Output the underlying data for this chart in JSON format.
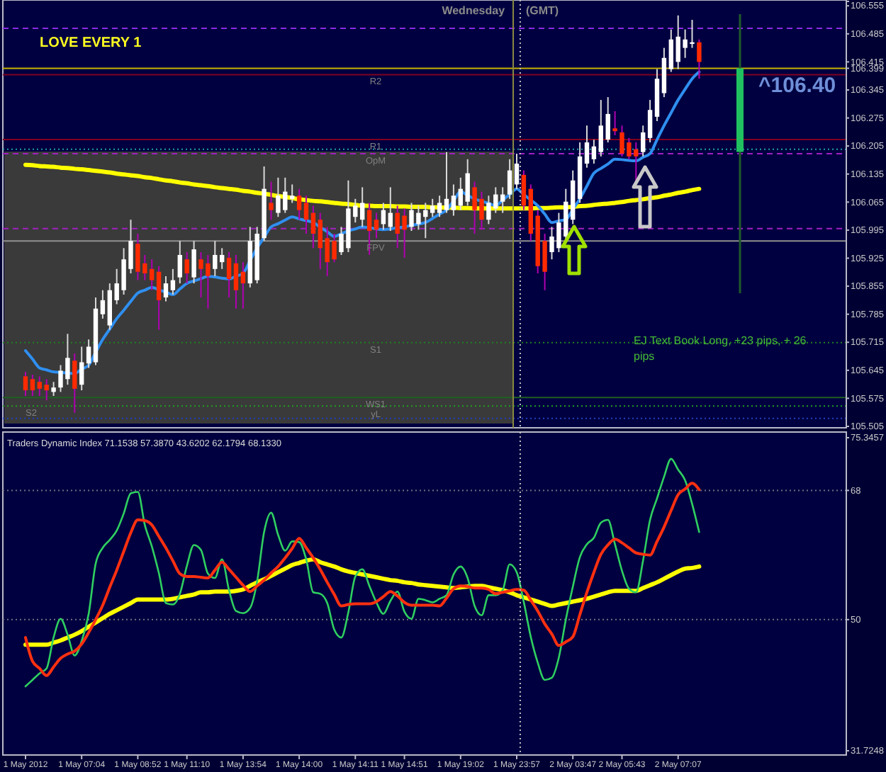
{
  "chart_data": [
    {
      "type": "candlestick",
      "title": "LOVE EVERY 1",
      "tick_labels": "y",
      "categories": [
        null,
        null,
        null,
        null,
        null,
        null,
        null,
        null,
        null,
        null,
        null,
        null,
        null,
        null,
        null,
        null,
        null,
        null,
        null,
        null,
        null,
        null,
        null,
        null,
        null,
        null,
        null,
        null,
        null,
        null,
        null,
        null,
        null,
        null,
        null,
        null,
        null,
        null,
        null,
        null,
        null,
        null,
        null,
        null,
        null,
        null,
        null,
        null,
        null,
        null,
        null,
        null,
        null,
        null,
        null,
        null,
        null,
        null,
        null,
        null,
        null,
        null,
        null,
        null,
        null,
        null,
        null,
        null,
        null,
        null,
        null,
        null,
        null,
        null,
        null,
        null,
        null,
        null,
        null,
        null,
        null,
        null,
        null,
        null,
        null,
        null,
        null,
        null,
        null,
        null,
        null,
        null,
        null,
        null,
        null,
        null,
        null
      ],
      "ylim": [
        105.505,
        106.566
      ],
      "yticks": [
        106.555,
        106.485,
        106.415,
        106.399,
        106.345,
        106.275,
        106.205,
        106.135,
        106.065,
        105.995,
        105.925,
        105.855,
        105.785,
        105.715,
        105.645,
        105.575,
        105.505
      ],
      "ohlc": [
        [
          105.63,
          105.641,
          105.581,
          105.595
        ],
        [
          105.623,
          105.634,
          105.581,
          105.595
        ],
        [
          105.616,
          105.63,
          105.581,
          105.599
        ],
        [
          105.609,
          105.623,
          105.57,
          105.595
        ],
        [
          105.591,
          105.616,
          105.581,
          105.602
        ],
        [
          105.602,
          105.658,
          105.591,
          105.644
        ],
        [
          105.623,
          105.736,
          105.609,
          105.676
        ],
        [
          105.669,
          105.687,
          105.539,
          105.599
        ],
        [
          105.609,
          105.704,
          105.595,
          105.665
        ],
        [
          105.662,
          105.722,
          105.651,
          105.704
        ],
        [
          105.665,
          105.827,
          105.658,
          105.799
        ],
        [
          105.785,
          105.845,
          105.774,
          105.82
        ],
        [
          105.757,
          105.862,
          105.746,
          105.845
        ],
        [
          105.82,
          105.898,
          105.81,
          105.862
        ],
        [
          105.845,
          105.95,
          105.834,
          105.922
        ],
        [
          105.898,
          106.021,
          105.887,
          105.968
        ],
        [
          105.961,
          105.986,
          105.87,
          105.891
        ],
        [
          105.912,
          105.933,
          105.87,
          105.887
        ],
        [
          105.898,
          105.922,
          105.845,
          105.87
        ],
        [
          105.891,
          105.905,
          105.746,
          105.82
        ],
        [
          105.827,
          105.88,
          105.817,
          105.862
        ],
        [
          105.845,
          105.898,
          105.834,
          105.87
        ],
        [
          105.877,
          105.968,
          105.862,
          105.933
        ],
        [
          105.922,
          105.94,
          105.862,
          105.887
        ],
        [
          105.877,
          105.968,
          105.862,
          105.947
        ],
        [
          105.922,
          105.94,
          105.827,
          105.898
        ],
        [
          105.912,
          105.933,
          105.799,
          105.88
        ],
        [
          105.898,
          105.968,
          105.88,
          105.933
        ],
        [
          105.915,
          105.95,
          105.898,
          105.933
        ],
        [
          105.926,
          105.94,
          105.827,
          105.873
        ],
        [
          105.912,
          105.933,
          105.799,
          105.845
        ],
        [
          105.891,
          105.915,
          105.799,
          105.862
        ],
        [
          105.862,
          106.003,
          105.852,
          105.968
        ],
        [
          105.87,
          106.003,
          105.862,
          105.986
        ],
        [
          105.975,
          106.154,
          105.968,
          106.098
        ],
        [
          106.063,
          106.116,
          106.021,
          106.045
        ],
        [
          106.038,
          106.126,
          106.028,
          106.081
        ],
        [
          106.045,
          106.126,
          106.038,
          106.091
        ],
        [
          106.073,
          106.109,
          106.063,
          106.081
        ],
        [
          106.081,
          106.098,
          106.021,
          106.045
        ],
        [
          106.063,
          106.081,
          105.986,
          106.021
        ],
        [
          106.038,
          106.056,
          105.95,
          105.986
        ],
        [
          106.021,
          106.038,
          105.898,
          105.95
        ],
        [
          105.975,
          106.003,
          105.88,
          105.915
        ],
        [
          105.968,
          105.986,
          105.915,
          105.922
        ],
        [
          105.94,
          106.003,
          105.933,
          105.986
        ],
        [
          105.95,
          106.119,
          105.94,
          106.049
        ],
        [
          106.028,
          106.073,
          106.014,
          106.056
        ],
        [
          106.021,
          106.102,
          106.003,
          106.063
        ],
        [
          106.045,
          106.063,
          105.933,
          105.993
        ],
        [
          106.021,
          106.038,
          105.975,
          105.996
        ],
        [
          106.01,
          106.063,
          105.996,
          106.045
        ],
        [
          106.003,
          106.102,
          105.993,
          106.038
        ],
        [
          106.038,
          106.056,
          105.95,
          105.986
        ],
        [
          106.031,
          106.049,
          105.926,
          105.996
        ],
        [
          106.003,
          106.063,
          105.993,
          106.045
        ],
        [
          106.01,
          106.056,
          105.996,
          106.038
        ],
        [
          106.028,
          106.063,
          105.975,
          106.045
        ],
        [
          106.038,
          106.073,
          106.028,
          106.056
        ],
        [
          106.038,
          106.081,
          106.028,
          106.063
        ],
        [
          106.045,
          106.19,
          106.038,
          106.073
        ],
        [
          106.045,
          106.109,
          106.031,
          106.081
        ],
        [
          106.056,
          106.126,
          106.045,
          106.098
        ],
        [
          106.066,
          106.172,
          106.056,
          106.137
        ],
        [
          106.102,
          106.116,
          105.986,
          106.045
        ],
        [
          106.073,
          106.091,
          105.996,
          106.021
        ],
        [
          106.021,
          106.081,
          106.01,
          106.063
        ],
        [
          106.049,
          106.102,
          106.038,
          106.084
        ],
        [
          106.066,
          106.102,
          106.038,
          106.084
        ],
        [
          106.084,
          106.172,
          106.073,
          106.144
        ],
        [
          106.109,
          106.186,
          106.098,
          106.161
        ],
        [
          106.133,
          106.144,
          106.045,
          106.056
        ],
        [
          106.098,
          106.109,
          105.968,
          105.986
        ],
        [
          106.031,
          106.045,
          105.887,
          105.905
        ],
        [
          105.968,
          105.986,
          105.845,
          105.891
        ],
        [
          105.94,
          106.003,
          105.922,
          105.979
        ],
        [
          105.95,
          106.038,
          105.94,
          106.014
        ],
        [
          105.979,
          106.098,
          105.968,
          106.066
        ],
        [
          106.021,
          106.144,
          106.01,
          106.119
        ],
        [
          106.073,
          106.214,
          106.063,
          106.179
        ],
        [
          106.161,
          106.256,
          106.151,
          106.214
        ],
        [
          106.172,
          106.221,
          106.161,
          106.204
        ],
        [
          106.19,
          106.32,
          106.179,
          106.256
        ],
        [
          106.221,
          106.327,
          106.214,
          106.285
        ],
        [
          106.249,
          106.292,
          106.232,
          106.242
        ],
        [
          106.239,
          106.256,
          106.179,
          106.186
        ],
        [
          106.214,
          106.225,
          106.172,
          106.179
        ],
        [
          106.197,
          106.214,
          106.116,
          106.179
        ],
        [
          106.19,
          106.256,
          106.179,
          106.239
        ],
        [
          106.225,
          106.32,
          106.214,
          106.295
        ],
        [
          106.278,
          106.397,
          106.267,
          106.373
        ],
        [
          106.337,
          106.45,
          106.327,
          106.425
        ],
        [
          106.397,
          106.496,
          106.39,
          106.471
        ],
        [
          106.415,
          106.531,
          106.397,
          106.478
        ],
        [
          106.45,
          106.496,
          106.425,
          106.471
        ],
        [
          106.46,
          106.52,
          106.45,
          106.464
        ],
        [
          106.464,
          106.471,
          106.373,
          106.415
        ]
      ],
      "series": [
        {
          "type": "line",
          "color": "#ffff00",
          "values": [
            106.158,
            106.157,
            106.155,
            106.154,
            106.153,
            106.151,
            106.15,
            106.148,
            106.147,
            106.145,
            106.143,
            106.141,
            106.139,
            106.136,
            106.134,
            106.132,
            106.13,
            106.127,
            106.125,
            106.122,
            106.119,
            106.117,
            106.114,
            106.112,
            106.109,
            106.107,
            106.105,
            106.102,
            106.1,
            106.098,
            106.096,
            106.093,
            106.091,
            106.088,
            106.086,
            106.083,
            106.08,
            106.078,
            106.075,
            106.072,
            106.07,
            106.068,
            106.067,
            106.065,
            106.063,
            106.061,
            106.06,
            106.058,
            106.056,
            106.056,
            106.055,
            106.055,
            106.055,
            106.054,
            106.054,
            106.053,
            106.053,
            106.053,
            106.052,
            106.052,
            106.051,
            106.051,
            106.05,
            106.05,
            106.049,
            106.049,
            106.049,
            106.049,
            106.049,
            106.049,
            106.049,
            106.049,
            106.049,
            106.05,
            106.05,
            106.051,
            106.052,
            106.052,
            106.053,
            106.055,
            106.056,
            106.058,
            106.06,
            106.061,
            106.063,
            106.065,
            106.068,
            106.07,
            106.072,
            106.075,
            106.077,
            106.081,
            106.084,
            106.088,
            106.091,
            106.095,
            106.098
          ]
        },
        {
          "type": "line",
          "color": "#2f8ff0",
          "values": [
            105.694,
            105.673,
            105.651,
            105.646,
            105.641,
            105.64,
            105.638,
            105.637,
            105.648,
            105.658,
            105.69,
            105.722,
            105.748,
            105.774,
            105.795,
            105.817,
            105.838,
            105.845,
            105.852,
            105.846,
            105.84,
            105.834,
            105.848,
            105.862,
            105.868,
            105.874,
            105.88,
            105.878,
            105.875,
            105.873,
            105.88,
            105.887,
            105.919,
            105.95,
            105.977,
            106.003,
            106.011,
            106.02,
            106.028,
            106.023,
            106.019,
            106.014,
            106.002,
            105.991,
            105.979,
            105.986,
            105.993,
            105.998,
            106.003,
            106.001,
            105.998,
            105.996,
            105.998,
            106.001,
            106.003,
            106.007,
            106.01,
            106.014,
            106.024,
            106.035,
            106.045,
            106.068,
            106.091,
            106.082,
            106.073,
            106.067,
            106.062,
            106.056,
            106.07,
            106.084,
            106.098,
            106.084,
            106.07,
            106.056,
            106.035,
            106.014,
            106.018,
            106.021,
            106.047,
            106.073,
            106.105,
            106.137,
            106.149,
            106.16,
            106.172,
            106.171,
            106.169,
            106.168,
            106.177,
            106.186,
            106.221,
            106.256,
            106.288,
            106.32,
            106.347,
            106.373,
            106.39
          ]
        }
      ],
      "ref_lines": [
        {
          "axis": "y",
          "value": 106.499,
          "color": "#8a2be2",
          "line_style": "dashed"
        },
        {
          "axis": "y",
          "value": 106.399,
          "color": "#c8b400",
          "line_style": "solid"
        },
        {
          "axis": "y",
          "value": 106.383,
          "label": "R2",
          "color": "#800020",
          "line_style": "solid"
        },
        {
          "axis": "y",
          "value": 106.221,
          "label": "R1",
          "color": "#800020",
          "line_style": "solid"
        },
        {
          "axis": "y",
          "value": 106.197,
          "color": "#20a0a0",
          "line_style": "dotted"
        },
        {
          "axis": "y",
          "value": 106.186,
          "label": "OpM",
          "color": "#a020c0",
          "line_style": "dashed"
        },
        {
          "axis": "y",
          "value": 105.999,
          "color": "#a020c0",
          "line_style": "dashed"
        },
        {
          "axis": "y",
          "value": 105.968,
          "label": "FPV",
          "color": "#909090",
          "line_style": "solid"
        },
        {
          "axis": "y",
          "value": 105.714,
          "label": "S1",
          "color": "#208020",
          "line_style": "dotted"
        },
        {
          "axis": "y",
          "value": 105.577,
          "label": "WS1",
          "color": "#206020",
          "line_style": "solid"
        },
        {
          "axis": "y",
          "value": 105.556,
          "label": "S2",
          "color": "#20a020",
          "line_style": "dotted"
        },
        {
          "axis": "y",
          "value": 105.525,
          "label": "yL",
          "color": "#2040c0",
          "line_style": "dotted"
        }
      ],
      "annotations": [
        "Wednesday",
        "(GMT)",
        "EJ Text Book Long, +23 pips, + 26 pips",
        {
          "text": "^106.40",
          "y": 106.399
        }
      ]
    },
    {
      "type": "line",
      "title": "Traders Dynamic Index 71.1538 57.3870 43.6202 62.1794 68.1330",
      "categories": [
        "1 May 2012",
        null,
        null,
        null,
        null,
        null,
        null,
        null,
        "1 May 07:04",
        null,
        null,
        null,
        null,
        null,
        null,
        null,
        "1 May 08:52",
        null,
        null,
        null,
        null,
        null,
        null,
        "1 May 11:10",
        null,
        null,
        null,
        null,
        null,
        null,
        null,
        "1 May 13:54",
        null,
        null,
        null,
        null,
        null,
        null,
        null,
        "1 May 14:00",
        null,
        null,
        null,
        null,
        null,
        null,
        null,
        "1 May 14:11",
        null,
        null,
        null,
        null,
        null,
        null,
        "1 May 14:51",
        null,
        null,
        null,
        null,
        null,
        null,
        null,
        "1 May 19:02",
        null,
        null,
        null,
        null,
        null,
        null,
        null,
        "1 May 23:57",
        null,
        null,
        null,
        null,
        null,
        null,
        null,
        "2 May 03:47",
        null,
        null,
        null,
        null,
        null,
        null,
        "2 May 05:43",
        null,
        null,
        null,
        null,
        null,
        null,
        null,
        "2 May 07:07",
        null,
        null,
        null
      ],
      "ylim": [
        31.7248,
        75.3457
      ],
      "yticks": [
        75.3457,
        68,
        50,
        31.7248
      ],
      "series": [
        {
          "color": "#ffff00",
          "values": [
            46.5,
            46.5,
            46.5,
            46.5,
            46.8,
            47.1,
            47.5,
            47.9,
            48.4,
            49.0,
            49.6,
            50.2,
            50.8,
            51.3,
            51.8,
            52.3,
            52.8,
            52.8,
            52.8,
            52.8,
            52.8,
            52.9,
            53.1,
            53.3,
            53.5,
            53.8,
            53.8,
            53.9,
            53.9,
            53.9,
            54.0,
            54.2,
            54.7,
            55.2,
            55.6,
            56.1,
            56.6,
            57.1,
            57.6,
            57.9,
            58.2,
            58.4,
            58.0,
            57.7,
            57.4,
            57.0,
            56.7,
            56.5,
            56.3,
            56.1,
            55.9,
            55.7,
            55.5,
            55.4,
            55.2,
            55.1,
            54.9,
            54.8,
            54.7,
            54.6,
            54.5,
            54.4,
            54.5,
            54.6,
            54.7,
            54.7,
            54.5,
            54.3,
            54.1,
            53.8,
            53.4,
            53.1,
            52.8,
            52.5,
            52.2,
            51.9,
            52.1,
            52.3,
            52.5,
            52.7,
            52.9,
            53.2,
            53.5,
            53.8,
            54.0,
            54.0,
            54.0,
            54.0,
            54.4,
            54.8,
            55.2,
            55.7,
            56.2,
            56.7,
            57.1,
            57.2,
            57.4
          ]
        },
        {
          "color": "#2fd060",
          "values": [
            40.7,
            41.6,
            42.5,
            43.2,
            47.5,
            50.1,
            47.9,
            45.0,
            47.0,
            50.8,
            57.8,
            60.0,
            61.1,
            62.4,
            64.8,
            67.6,
            67.8,
            63.2,
            60.2,
            56.5,
            52.3,
            52.1,
            53.6,
            57.5,
            60.4,
            59.7,
            56.4,
            55.8,
            58.4,
            54.1,
            51.2,
            50.9,
            51.6,
            55.3,
            62.2,
            64.9,
            61.8,
            59.6,
            60.9,
            60.8,
            58.4,
            53.8,
            53.6,
            52.3,
            48.6,
            47.5,
            51.0,
            56.0,
            57.0,
            54.7,
            52.4,
            50.8,
            52.6,
            53.9,
            51.1,
            50.1,
            52.9,
            52.7,
            52.4,
            52.9,
            53.4,
            56.3,
            57.4,
            55.8,
            51.9,
            50.6,
            53.4,
            53.4,
            54.1,
            57.7,
            56.6,
            52.5,
            47.6,
            44.0,
            41.6,
            41.9,
            44.7,
            50.0,
            54.6,
            58.7,
            60.5,
            61.4,
            63.5,
            63.9,
            60.5,
            56.8,
            54.3,
            53.8,
            58.2,
            63.9,
            66.9,
            69.9,
            72.4,
            70.9,
            69.4,
            66.1,
            62.2
          ]
        },
        {
          "color": "#ff3010",
          "values": [
            47.5,
            44.2,
            43.2,
            42.2,
            43.4,
            44.6,
            45.2,
            45.6,
            46.6,
            48.2,
            50.0,
            52.0,
            54.5,
            56.9,
            59.5,
            62.1,
            63.9,
            63.8,
            63.2,
            61.6,
            60.0,
            58.2,
            56.4,
            56.0,
            56.0,
            55.9,
            55.8,
            56.9,
            58.0,
            57.0,
            55.9,
            54.8,
            53.9,
            54.7,
            55.5,
            56.5,
            57.4,
            58.6,
            59.9,
            61.3,
            60.0,
            58.6,
            57.0,
            55.2,
            53.5,
            51.9,
            52.1,
            52.2,
            52.2,
            52.2,
            52.5,
            53.2,
            53.9,
            53.3,
            52.4,
            52.0,
            52.0,
            52.0,
            52.0,
            51.9,
            53.0,
            54.3,
            54.7,
            54.6,
            54.4,
            54.4,
            54.2,
            53.6,
            53.8,
            54.0,
            54.2,
            54.1,
            52.7,
            51.2,
            49.4,
            48.0,
            46.4,
            46.9,
            47.6,
            50.7,
            53.8,
            56.6,
            59.1,
            60.4,
            61.2,
            60.7,
            60.0,
            59.3,
            59.1,
            59.0,
            60.9,
            62.9,
            65.2,
            67.4,
            68.2,
            69.0,
            68.1
          ]
        }
      ],
      "ref_lines": [
        {
          "axis": "y",
          "value": 68,
          "color": "#707080",
          "line_style": "dotted"
        },
        {
          "axis": "y",
          "value": 50,
          "color": "#707080",
          "line_style": "dotted"
        }
      ]
    }
  ]
}
